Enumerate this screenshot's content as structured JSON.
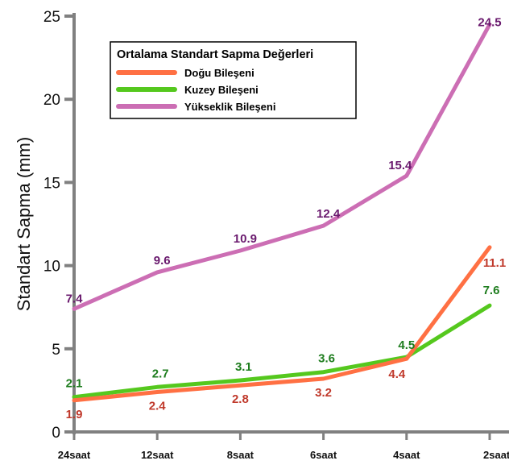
{
  "chart_data": {
    "type": "line",
    "categories": [
      "24saat",
      "12saat",
      "8saat",
      "6saat",
      "4saat",
      "2saat"
    ],
    "ylabel": "Standart Sapma (mm)",
    "xlabel": "",
    "ylim": [
      0,
      25
    ],
    "yticks": [
      0,
      5,
      10,
      15,
      20,
      25
    ],
    "grid": false,
    "legend": {
      "title": "Ortalama Standart Sapma Değerleri",
      "placement": "top-left"
    },
    "series": [
      {
        "name": "Doğu Bileşeni",
        "color": "#ff7043",
        "label_color": "#c0392b",
        "values": [
          1.9,
          2.4,
          2.8,
          3.2,
          4.4,
          11.1
        ],
        "labels": [
          "1.9",
          "2.4",
          "2.8",
          "3.2",
          "4.4",
          "11.1"
        ]
      },
      {
        "name": "Kuzey Bileşeni",
        "color": "#55c81e",
        "label_color": "#1e7d1e",
        "values": [
          2.1,
          2.7,
          3.1,
          3.6,
          4.5,
          7.6
        ],
        "labels": [
          "2.1",
          "2.7",
          "3.1",
          "3.6",
          "4.5",
          "7.6"
        ]
      },
      {
        "name": "Yükseklik Bileşeni",
        "color": "#cc6eb4",
        "label_color": "#6a1a6e",
        "values": [
          7.4,
          9.6,
          10.9,
          12.4,
          15.4,
          24.5
        ],
        "labels": [
          "7.4",
          "9.6",
          "10.9",
          "12.4",
          "15.4",
          "24.5"
        ]
      }
    ]
  }
}
